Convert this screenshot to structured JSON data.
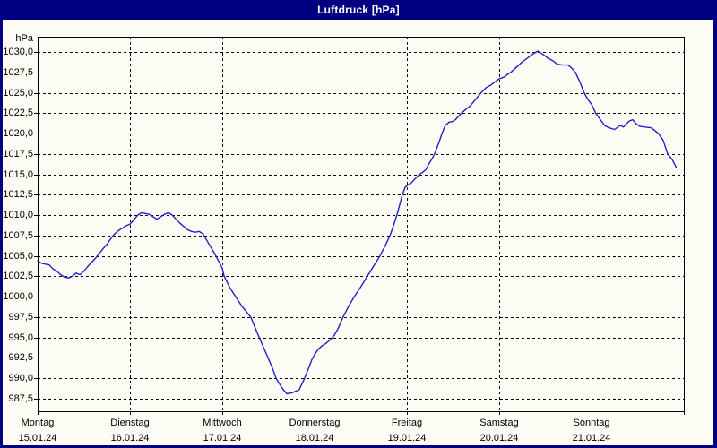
{
  "window": {
    "title": "Luftdruck [hPa]",
    "titlebar_color": "#000080",
    "border_color": "#000080",
    "content_background": "#fcfcf4",
    "title_text_color": "#ffffff"
  },
  "chart_data": {
    "type": "line",
    "title": "Luftdruck [hPa]",
    "unit_label": "hPa",
    "ylabel": "hPa",
    "xlabel": "",
    "ylim": [
      987.5,
      1030.0
    ],
    "y_tick_step": 2.5,
    "grid": "dashed-black",
    "legend": "none",
    "line_color": "#2222c3",
    "axis_color": "#000000",
    "x_total_hours": 168,
    "y_ticks": [
      {
        "value": 1030.0,
        "label": "1030,0"
      },
      {
        "value": 1027.5,
        "label": "1027,5"
      },
      {
        "value": 1025.0,
        "label": "1025,0"
      },
      {
        "value": 1022.5,
        "label": "1022,5"
      },
      {
        "value": 1020.0,
        "label": "1020,0"
      },
      {
        "value": 1017.5,
        "label": "1017,5"
      },
      {
        "value": 1015.0,
        "label": "1015,0"
      },
      {
        "value": 1012.5,
        "label": "1012,5"
      },
      {
        "value": 1010.0,
        "label": "1010,0"
      },
      {
        "value": 1007.5,
        "label": "1007,5"
      },
      {
        "value": 1005.0,
        "label": "1005,0"
      },
      {
        "value": 1002.5,
        "label": "1002,5"
      },
      {
        "value": 1000.0,
        "label": "1000,0"
      },
      {
        "value": 997.5,
        "label": "997,5"
      },
      {
        "value": 995.0,
        "label": "995,0"
      },
      {
        "value": 992.5,
        "label": "992,5"
      },
      {
        "value": 990.0,
        "label": "990,0"
      },
      {
        "value": 987.5,
        "label": "987,5"
      }
    ],
    "x_days": [
      {
        "name": "Montag",
        "date": "15.01.24",
        "hour": 0
      },
      {
        "name": "Dienstag",
        "date": "16.01.24",
        "hour": 24
      },
      {
        "name": "Mittwoch",
        "date": "17.01.24",
        "hour": 48
      },
      {
        "name": "Donnerstag",
        "date": "18.01.24",
        "hour": 72
      },
      {
        "name": "Freitag",
        "date": "19.01.24",
        "hour": 96
      },
      {
        "name": "Samstag",
        "date": "20.01.24",
        "hour": 120
      },
      {
        "name": "Sonntag",
        "date": "21.01.24",
        "hour": 144
      }
    ],
    "series": [
      {
        "name": "Luftdruck",
        "points": [
          [
            0,
            1004.4
          ],
          [
            1,
            1004.1
          ],
          [
            2,
            1004.0
          ],
          [
            3,
            1003.9
          ],
          [
            4,
            1003.4
          ],
          [
            5,
            1003.1
          ],
          [
            6,
            1002.7
          ],
          [
            7,
            1002.4
          ],
          [
            8,
            1002.3
          ],
          [
            9,
            1002.5
          ],
          [
            10,
            1002.9
          ],
          [
            11,
            1002.7
          ],
          [
            12,
            1003.1
          ],
          [
            13,
            1003.7
          ],
          [
            14,
            1004.2
          ],
          [
            15,
            1004.7
          ],
          [
            16,
            1005.3
          ],
          [
            17,
            1005.9
          ],
          [
            18,
            1006.4
          ],
          [
            19,
            1007.1
          ],
          [
            20,
            1007.7
          ],
          [
            21,
            1008.1
          ],
          [
            22,
            1008.4
          ],
          [
            23,
            1008.7
          ],
          [
            24,
            1008.9
          ],
          [
            25,
            1009.4
          ],
          [
            26,
            1010.0
          ],
          [
            27,
            1010.3
          ],
          [
            28,
            1010.2
          ],
          [
            29,
            1010.1
          ],
          [
            30,
            1009.8
          ],
          [
            31,
            1009.5
          ],
          [
            32,
            1009.8
          ],
          [
            33,
            1010.1
          ],
          [
            34,
            1010.3
          ],
          [
            35,
            1010.0
          ],
          [
            36,
            1009.5
          ],
          [
            37,
            1009.0
          ],
          [
            38,
            1008.6
          ],
          [
            39,
            1008.2
          ],
          [
            40,
            1008.0
          ],
          [
            41,
            1007.9
          ],
          [
            42,
            1008.0
          ],
          [
            43,
            1007.7
          ],
          [
            44,
            1006.9
          ],
          [
            45,
            1006.1
          ],
          [
            46,
            1005.3
          ],
          [
            47,
            1004.4
          ],
          [
            48,
            1003.5
          ],
          [
            48.5,
            1002.5
          ],
          [
            50,
            1001.1
          ],
          [
            51.5,
            1000.0
          ],
          [
            53,
            998.9
          ],
          [
            55.4,
            997.5
          ],
          [
            57.6,
            995.0
          ],
          [
            59,
            993.5
          ],
          [
            60,
            992.4
          ],
          [
            61,
            991.3
          ],
          [
            62,
            990.0
          ],
          [
            63,
            989.2
          ],
          [
            63.6,
            988.8
          ],
          [
            64.8,
            988.1
          ],
          [
            66,
            988.2
          ],
          [
            67,
            988.4
          ],
          [
            68,
            988.6
          ],
          [
            69,
            989.6
          ],
          [
            69.4,
            990.0
          ],
          [
            70.5,
            991.3
          ],
          [
            71.3,
            992.3
          ],
          [
            72,
            992.9
          ],
          [
            73,
            993.6
          ],
          [
            74,
            994.0
          ],
          [
            75,
            994.3
          ],
          [
            76,
            994.7
          ],
          [
            77,
            995.2
          ],
          [
            78,
            996.0
          ],
          [
            79.4,
            997.5
          ],
          [
            80.6,
            998.6
          ],
          [
            82.3,
            1000.0
          ],
          [
            84,
            1001.2
          ],
          [
            85.7,
            1002.5
          ],
          [
            87.4,
            1003.8
          ],
          [
            89,
            1005.0
          ],
          [
            90.4,
            1006.3
          ],
          [
            91.6,
            1007.5
          ],
          [
            92.5,
            1008.7
          ],
          [
            93.4,
            1010.0
          ],
          [
            94.1,
            1011.2
          ],
          [
            94.8,
            1012.5
          ],
          [
            95.5,
            1013.4
          ],
          [
            96,
            1013.6
          ],
          [
            97,
            1013.9
          ],
          [
            98,
            1014.4
          ],
          [
            99.3,
            1015.0
          ],
          [
            100.2,
            1015.3
          ],
          [
            101,
            1015.6
          ],
          [
            101.6,
            1016.2
          ],
          [
            102.4,
            1016.8
          ],
          [
            103.2,
            1017.5
          ],
          [
            104,
            1018.5
          ],
          [
            104.4,
            1019.0
          ],
          [
            105.1,
            1020.0
          ],
          [
            106,
            1021.0
          ],
          [
            107,
            1021.4
          ],
          [
            108,
            1021.5
          ],
          [
            108.6,
            1021.7
          ],
          [
            109.4,
            1022.1
          ],
          [
            110.2,
            1022.5
          ],
          [
            111.4,
            1023.0
          ],
          [
            112.5,
            1023.4
          ],
          [
            113.9,
            1024.2
          ],
          [
            115.3,
            1025.0
          ],
          [
            116.5,
            1025.6
          ],
          [
            117.7,
            1025.9
          ],
          [
            119.1,
            1026.4
          ],
          [
            120,
            1026.7
          ],
          [
            121.2,
            1026.9
          ],
          [
            122.3,
            1027.3
          ],
          [
            123,
            1027.5
          ],
          [
            124.4,
            1028.1
          ],
          [
            125.8,
            1028.7
          ],
          [
            127.2,
            1029.2
          ],
          [
            128.6,
            1029.7
          ],
          [
            130,
            1030.1
          ],
          [
            131.4,
            1029.7
          ],
          [
            132.8,
            1029.2
          ],
          [
            134,
            1028.9
          ],
          [
            135.1,
            1028.5
          ],
          [
            136.5,
            1028.4
          ],
          [
            137.9,
            1028.4
          ],
          [
            138.9,
            1028.0
          ],
          [
            139.8,
            1027.5
          ],
          [
            141,
            1026.3
          ],
          [
            142.1,
            1025.0
          ],
          [
            143,
            1024.2
          ],
          [
            144,
            1023.6
          ],
          [
            145.1,
            1022.5
          ],
          [
            146.3,
            1021.7
          ],
          [
            147.4,
            1021.0
          ],
          [
            148.6,
            1020.7
          ],
          [
            150,
            1020.5
          ],
          [
            151.4,
            1021.0
          ],
          [
            152.3,
            1020.8
          ],
          [
            153.7,
            1021.5
          ],
          [
            154.7,
            1021.7
          ],
          [
            155.6,
            1021.2
          ],
          [
            156.5,
            1020.9
          ],
          [
            157.9,
            1020.8
          ],
          [
            159.6,
            1020.7
          ],
          [
            161.4,
            1020.0
          ],
          [
            162.6,
            1019.2
          ],
          [
            163.8,
            1017.5
          ],
          [
            165,
            1016.8
          ],
          [
            166.1,
            1015.8
          ]
        ]
      }
    ]
  }
}
